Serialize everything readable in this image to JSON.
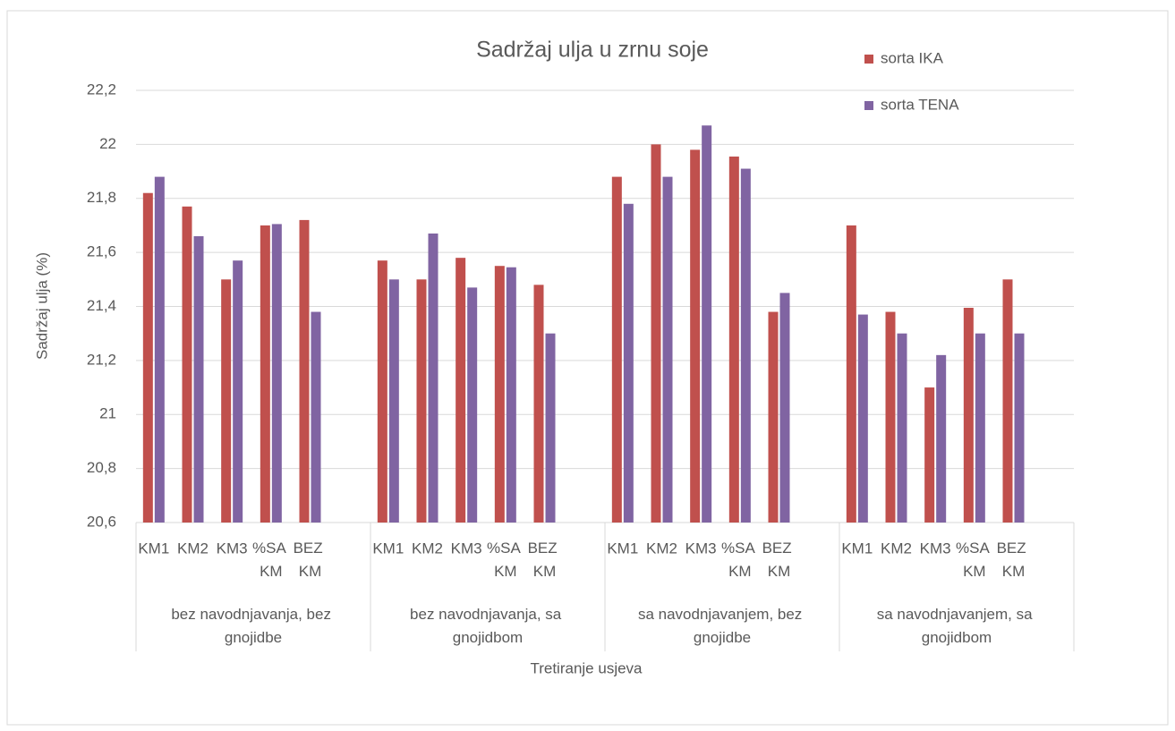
{
  "chart_data": {
    "type": "bar",
    "title": "Sadržaj ulja u zrnu soje",
    "x_label": "Tretiranje usjeva",
    "y_label": "Sadržaj ulja (%)",
    "categories": [
      "KM1",
      "KM2",
      "KM3",
      "%SA KM",
      "BEZ KM",
      null,
      "KM1",
      "KM2",
      "KM3",
      "%SA KM",
      "BEZ KM",
      null,
      "KM1",
      "KM2",
      "KM3",
      "%SA KM",
      "BEZ KM",
      null,
      "KM1",
      "KM2",
      "KM3",
      "%SA KM",
      "BEZ KM",
      null
    ],
    "groups": [
      "bez navodnjavanja, bez gnojidbe",
      "bez navodnjavanja, sa gnojidbom",
      "sa navodnjavanjem, bez gnojidbe",
      "sa navodnjavanjem, sa gnojidbom"
    ],
    "series": [
      {
        "name": "sorta IKA",
        "color": "#c0504d",
        "values": [
          21.82,
          21.77,
          21.5,
          21.7,
          21.72,
          null,
          21.57,
          21.5,
          21.58,
          21.55,
          21.48,
          null,
          21.88,
          22.0,
          21.98,
          21.955,
          21.38,
          null,
          21.7,
          21.38,
          21.1,
          21.395,
          21.5,
          null
        ]
      },
      {
        "name": "sorta TENA",
        "color": "#8064a2",
        "values": [
          21.88,
          21.66,
          21.57,
          21.705,
          21.38,
          null,
          21.5,
          21.67,
          21.47,
          21.545,
          21.3,
          null,
          21.78,
          21.88,
          22.07,
          21.91,
          21.45,
          null,
          21.37,
          21.3,
          21.22,
          21.3,
          21.3,
          null
        ]
      }
    ],
    "ylim": [
      20.6,
      22.2
    ],
    "yticks": [
      {
        "value": 20.6,
        "label": "20,6"
      },
      {
        "value": 20.8,
        "label": "20,8"
      },
      21,
      {
        "value": 21.2,
        "label": "21,2"
      },
      {
        "value": 21.4,
        "label": "21,4"
      },
      {
        "value": 21.6,
        "label": "21,6"
      },
      {
        "value": 21.8,
        "label": "21,8"
      },
      22,
      {
        "value": 22.2,
        "label": "22,2"
      }
    ],
    "grid": true,
    "legend": "top-right"
  }
}
